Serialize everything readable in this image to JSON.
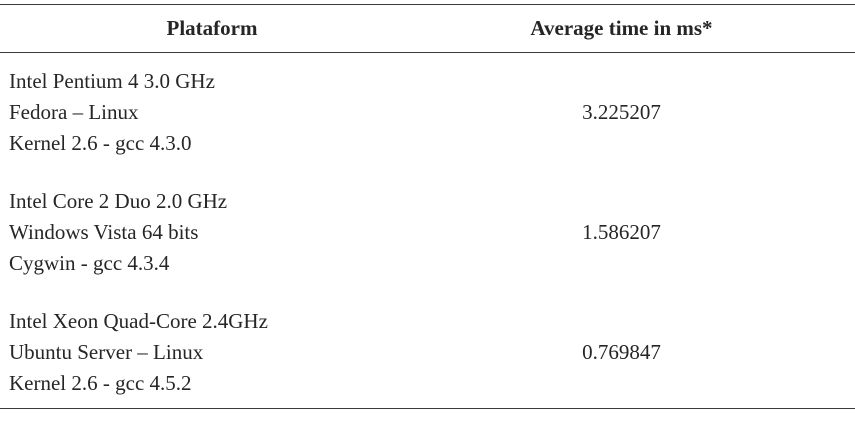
{
  "table": {
    "headers": {
      "platform": "Plataform",
      "time": "Average time in ms*"
    },
    "rows": [
      {
        "platform_lines": [
          "Intel Pentium 4 3.0 GHz",
          "Fedora – Linux",
          "Kernel 2.6 - gcc 4.3.0"
        ],
        "time": "3.225207"
      },
      {
        "platform_lines": [
          "Intel Core 2 Duo 2.0 GHz",
          "Windows Vista 64 bits",
          "Cygwin - gcc 4.3.4"
        ],
        "time": "1.586207"
      },
      {
        "platform_lines": [
          "Intel Xeon Quad-Core 2.4GHz",
          "Ubuntu Server – Linux",
          "Kernel 2.6 - gcc 4.5.2"
        ],
        "time": "0.769847"
      }
    ]
  }
}
